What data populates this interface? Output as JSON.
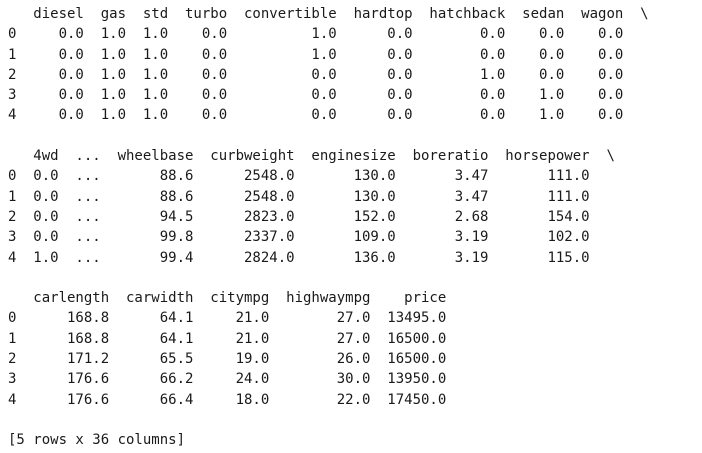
{
  "blocks": [
    {
      "header": "   diesel  gas  std  turbo  convertible  hardtop  hatchback  sedan  wagon  \\",
      "rows": [
        "0     0.0  1.0  1.0    0.0          1.0      0.0        0.0    0.0    0.0",
        "1     0.0  1.0  1.0    0.0          1.0      0.0        0.0    0.0    0.0",
        "2     0.0  1.0  1.0    0.0          0.0      0.0        1.0    0.0    0.0",
        "3     0.0  1.0  1.0    0.0          0.0      0.0        0.0    1.0    0.0",
        "4     0.0  1.0  1.0    0.0          0.0      0.0        0.0    1.0    0.0"
      ]
    },
    {
      "header": "   4wd  ...  wheelbase  curbweight  enginesize  boreratio  horsepower  \\",
      "rows": [
        "0  0.0  ...       88.6      2548.0       130.0       3.47       111.0",
        "1  0.0  ...       88.6      2548.0       130.0       3.47       111.0",
        "2  0.0  ...       94.5      2823.0       152.0       2.68       154.0",
        "3  0.0  ...       99.8      2337.0       109.0       3.19       102.0",
        "4  1.0  ...       99.4      2824.0       136.0       3.19       115.0"
      ]
    },
    {
      "header": "   carlength  carwidth  citympg  highwaympg    price",
      "rows": [
        "0      168.8      64.1     21.0        27.0  13495.0",
        "1      168.8      64.1     21.0        27.0  16500.0",
        "2      171.2      65.5     19.0        26.0  16500.0",
        "3      176.6      66.2     24.0        30.0  13950.0",
        "4      176.6      66.4     18.0        22.0  17450.0"
      ]
    }
  ],
  "footer": "[5 rows x 36 columns]"
}
